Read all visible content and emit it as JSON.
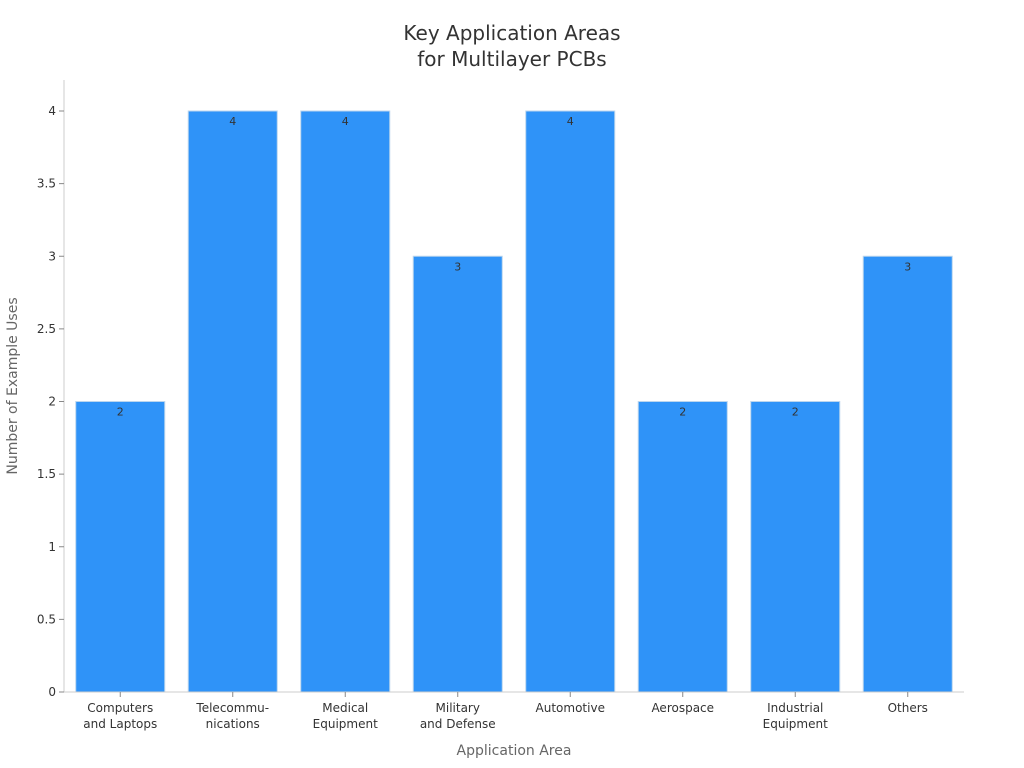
{
  "chart_data": {
    "type": "bar",
    "title_lines": [
      "Key Application Areas",
      "for Multilayer PCBs"
    ],
    "xlabel": "Application Area",
    "ylabel": "Number of Example Uses",
    "categories": [
      [
        "Computers",
        "and Laptops"
      ],
      [
        "Telecommu-",
        "nications"
      ],
      [
        "Medical",
        "Equipment"
      ],
      [
        "Military",
        "and Defense"
      ],
      [
        "Automotive"
      ],
      [
        "Aerospace"
      ],
      [
        "Industrial",
        "Equipment"
      ],
      [
        "Others"
      ]
    ],
    "values": [
      2,
      4,
      4,
      3,
      4,
      2,
      2,
      3
    ],
    "data_labels": [
      "2",
      "4",
      "4",
      "3",
      "4",
      "2",
      "2",
      "3"
    ],
    "ylim": [
      0,
      4.2
    ],
    "yticks": [
      0,
      0.5,
      1,
      1.5,
      2,
      2.5,
      3,
      3.5,
      4
    ],
    "ytick_labels": [
      "0",
      "0.5",
      "1",
      "1.5",
      "2",
      "2.5",
      "3",
      "3.5",
      "4"
    ],
    "grid": false,
    "bar_color": "#2f93f8",
    "bar_edge_color": "#bcd6ee",
    "axis_color": "#cccccc"
  }
}
